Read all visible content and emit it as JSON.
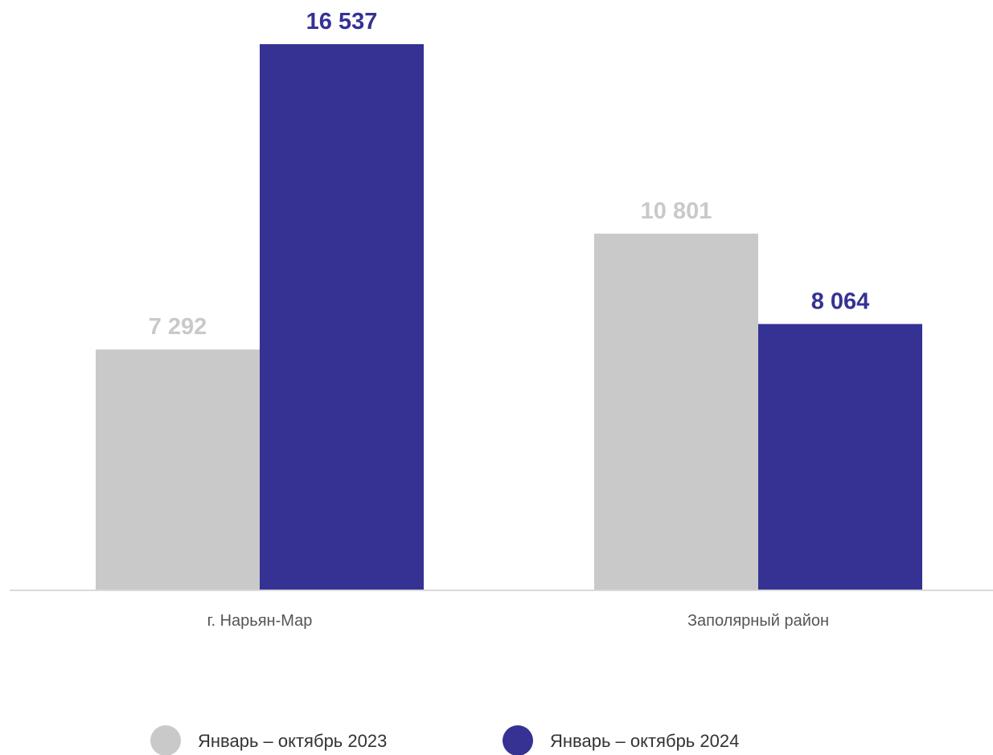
{
  "chart_data": {
    "type": "bar",
    "title": "",
    "xlabel": "",
    "ylabel": "",
    "categories": [
      "г. Нарьян-Мар",
      "Заполярный район"
    ],
    "series": [
      {
        "name": "Январь – октябрь 2023",
        "color": "#c9c9c9",
        "values": [
          7292,
          10801
        ],
        "labels": [
          "7 292",
          "10 801"
        ]
      },
      {
        "name": "Январь – октябрь 2024",
        "color": "#353294",
        "values": [
          16537,
          8064
        ],
        "labels": [
          "16 537",
          "8 064"
        ]
      }
    ],
    "ylim": [
      0,
      16537
    ],
    "grid": false,
    "legend_position": "bottom"
  }
}
